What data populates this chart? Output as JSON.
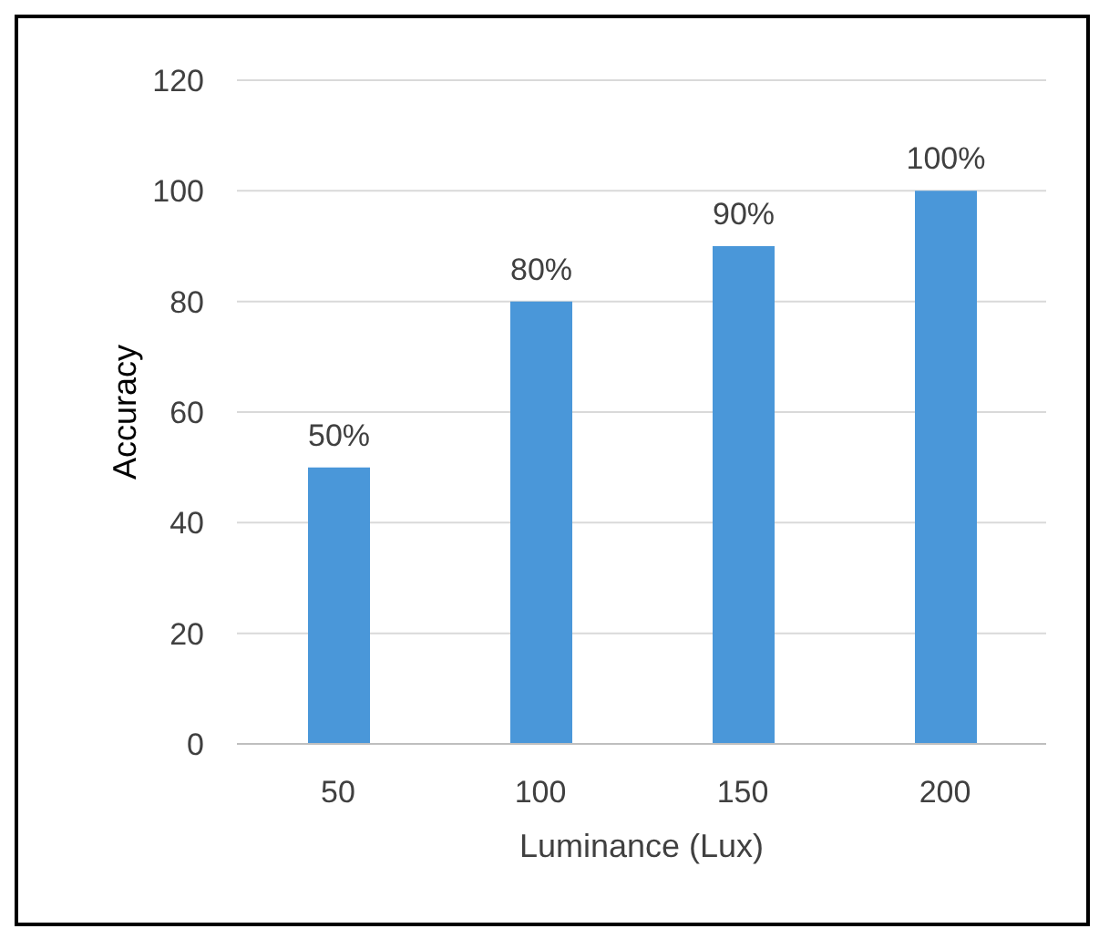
{
  "chart_data": {
    "type": "bar",
    "xlabel": "Luminance (Lux)",
    "ylabel": "Accuracy",
    "categories": [
      "50",
      "100",
      "150",
      "200"
    ],
    "series": [
      {
        "color": "#4a97d9",
        "values": [
          50,
          80,
          90,
          100
        ],
        "value_labels": [
          "50%",
          "80%",
          "90%",
          "100%"
        ]
      }
    ],
    "ylim": [
      0,
      120
    ],
    "yticks": [
      0,
      20,
      40,
      60,
      80,
      100,
      120
    ],
    "grid": "y",
    "legend": false
  }
}
